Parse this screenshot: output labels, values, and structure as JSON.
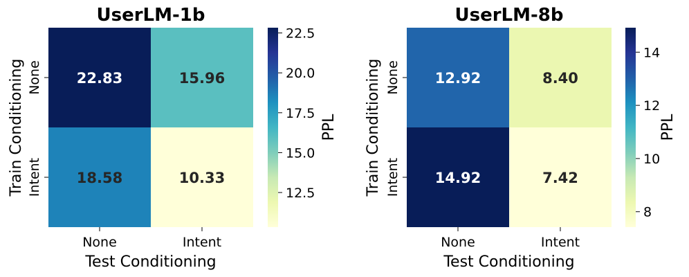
{
  "colormap": [
    "#ffffd9",
    "#edf8b1",
    "#c7e9b4",
    "#7fcdbb",
    "#41b6c4",
    "#1d91c0",
    "#225ea8",
    "#253494",
    "#081d58"
  ],
  "chart_data": [
    {
      "type": "heatmap",
      "title": "UserLM-1b",
      "xlabel": "Test Conditioning",
      "ylabel": "Train Conditioning",
      "x_categories": [
        "None",
        "Intent"
      ],
      "y_categories": [
        "None",
        "Intent"
      ],
      "values": [
        [
          22.83,
          15.96
        ],
        [
          18.58,
          10.33
        ]
      ],
      "value_labels": [
        [
          "22.83",
          "15.96"
        ],
        [
          "18.58",
          "10.33"
        ]
      ],
      "colorbar": {
        "label": "PPL",
        "range": [
          10.33,
          22.83
        ],
        "ticks": [
          12.5,
          15.0,
          17.5,
          20.0,
          22.5
        ],
        "tick_labels": [
          "12.5",
          "15.0",
          "17.5",
          "20.0",
          "22.5"
        ]
      }
    },
    {
      "type": "heatmap",
      "title": "UserLM-8b",
      "xlabel": "Test Conditioning",
      "ylabel": "Train Conditioning",
      "x_categories": [
        "None",
        "Intent"
      ],
      "y_categories": [
        "None",
        "Intent"
      ],
      "values": [
        [
          12.92,
          8.4
        ],
        [
          14.92,
          7.42
        ]
      ],
      "value_labels": [
        [
          "12.92",
          "8.40"
        ],
        [
          "14.92",
          "7.42"
        ]
      ],
      "colorbar": {
        "label": "PPL",
        "range": [
          7.42,
          14.92
        ],
        "ticks": [
          8,
          10,
          12,
          14
        ],
        "tick_labels": [
          "8",
          "10",
          "12",
          "14"
        ]
      }
    }
  ]
}
